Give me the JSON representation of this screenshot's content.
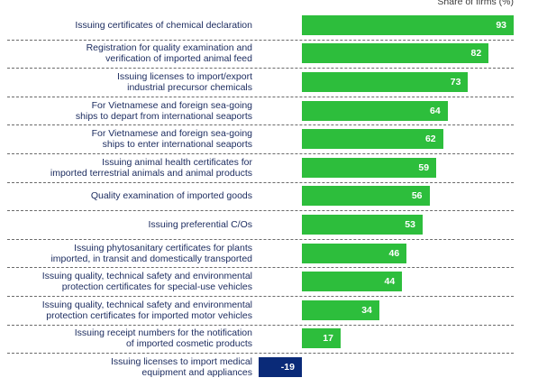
{
  "chart_data": {
    "type": "bar",
    "orientation": "horizontal",
    "unit_label": "Share of firms (%)",
    "categories": [
      "Issuing certificates of chemical declaration",
      "Registration for quality examination and verification of imported animal feed",
      "Issuing licenses to import/export industrial precursor chemicals",
      "For Vietnamese and foreign sea-going ships to depart from international seaports",
      "For Vietnamese and foreign sea-going ships to enter international seaports",
      "Issuing animal health certificates for imported terrestrial animals and animal products",
      "Quality examination of imported goods",
      "Issuing preferential C/Os",
      "Issuing phytosanitary certificates for plants imported, in transit and domestically transported",
      "Issuing quality, technical safety and environmental protection certificates for special-use vehicles",
      "Issuing quality, technical safety and environmental protection certificates for imported motor vehicles",
      "Issuing receipt numbers for the notification of imported cosmetic products",
      "Issuing licenses to import medical equipment and appliances"
    ],
    "label_lines": [
      [
        "Issuing certificates of chemical declaration"
      ],
      [
        "Registration for quality examination and",
        "verification of imported animal feed"
      ],
      [
        "Issuing licenses to import/export",
        "industrial precursor chemicals"
      ],
      [
        "For Vietnamese and foreign sea-going",
        "ships to depart from international seaports"
      ],
      [
        "For Vietnamese and foreign sea-going",
        "ships to enter international seaports"
      ],
      [
        "Issuing animal health certificates for",
        "imported terrestrial animals and animal products"
      ],
      [
        "Quality examination of imported goods"
      ],
      [
        "Issuing preferential C/Os"
      ],
      [
        "Issuing phytosanitary certificates for plants",
        "imported, in transit and domestically transported"
      ],
      [
        "Issuing quality, technical safety and environmental",
        "protection certificates for special-use vehicles"
      ],
      [
        "Issuing quality, technical safety and environmental",
        "protection certificates for imported motor vehicles"
      ],
      [
        "Issuing receipt numbers for the notification",
        "of imported cosmetic products"
      ],
      [
        "Issuing licenses to import medical",
        "equipment and appliances"
      ]
    ],
    "values": [
      93,
      82,
      73,
      64,
      62,
      59,
      56,
      53,
      46,
      44,
      34,
      17,
      -19
    ],
    "xlim": [
      -19,
      93
    ],
    "colors": {
      "positive": "#2dbe3c",
      "negative": "#0a2a78",
      "label_text": "#1a2a5e"
    },
    "grid": false,
    "legend": "none"
  }
}
